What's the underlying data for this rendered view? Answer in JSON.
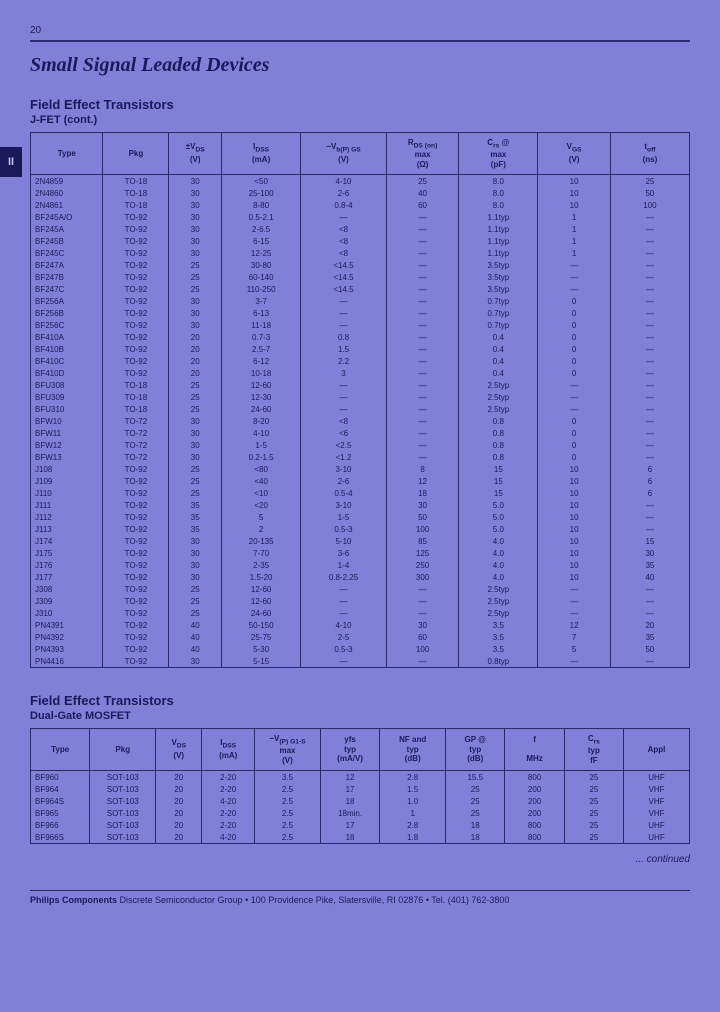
{
  "page_number": "20",
  "main_title": "Small Signal Leaded Devices",
  "side_tab": "II",
  "continued_text": "... continued",
  "footer": {
    "bold": "Philips Components",
    "rest": " Discrete Semiconductor Group • 100 Providence Pike, Slatersville, RI 02876 • Tel. (401) 762-3800"
  },
  "table1": {
    "title": "Field Effect Transistors",
    "subtitle": "J-FET (cont.)",
    "headers": [
      "Type",
      "Pkg",
      "±V<sub>DS</sub><br>(V)",
      "I<sub>DSS</sub><br>(mA)",
      "−V<sub>b(P) GS</sub><br>(V)",
      "R<sub>DS (on)</sub><br>max<br>(Ω)",
      "C<sub>rs</sub> @<br>max<br>(pF)",
      "V<sub>GS</sub><br>(V)",
      "t<sub>off</sub><br>(ns)"
    ],
    "widths": [
      "11%",
      "10%",
      "8%",
      "12%",
      "13%",
      "11%",
      "12%",
      "11%",
      "12%"
    ],
    "rows": [
      [
        "2N4859",
        "TO-18",
        "30",
        "<50",
        "4-10",
        "25",
        "8.0",
        "10",
        "25"
      ],
      [
        "2N4860",
        "TO-18",
        "30",
        "25-100",
        "2-6",
        "40",
        "8.0",
        "10",
        "50"
      ],
      [
        "2N4861",
        "TO-18",
        "30",
        "8-80",
        "0.8-4",
        "60",
        "8.0",
        "10",
        "100"
      ],
      [
        "BF245A/O",
        "TO-92",
        "30",
        "0.5-2.1",
        "—",
        "—",
        "1.1typ",
        "1",
        "—"
      ],
      [
        "BF245A",
        "TO-92",
        "30",
        "2-6.5",
        "<8",
        "—",
        "1.1typ",
        "1",
        "—"
      ],
      [
        "BF245B",
        "TO-92",
        "30",
        "6-15",
        "<8",
        "—",
        "1.1typ",
        "1",
        "—"
      ],
      [
        "BF245C",
        "TO-92",
        "30",
        "12-25",
        "<8",
        "—",
        "1.1typ",
        "1",
        "—"
      ],
      [
        "BF247A",
        "TO-92",
        "25",
        "30-80",
        "<14.5",
        "—",
        "3.5typ",
        "—",
        "—"
      ],
      [
        "BF247B",
        "TO-92",
        "25",
        "60-140",
        "<14.5",
        "—",
        "3.5typ",
        "—",
        "—"
      ],
      [
        "BF247C",
        "TO-92",
        "25",
        "110-250",
        "<14.5",
        "—",
        "3.5typ",
        "—",
        "—"
      ],
      [
        "BF256A",
        "TO-92",
        "30",
        "3-7",
        "—",
        "—",
        "0.7typ",
        "0",
        "—"
      ],
      [
        "BF256B",
        "TO-92",
        "30",
        "6-13",
        "—",
        "—",
        "0.7typ",
        "0",
        "—"
      ],
      [
        "BF256C",
        "TO-92",
        "30",
        "11-18",
        "—",
        "—",
        "0.7typ",
        "0",
        "—"
      ],
      [
        "BF410A",
        "TO-92",
        "20",
        "0.7-3",
        "0.8",
        "—",
        "0.4",
        "0",
        "—"
      ],
      [
        "BF410B",
        "TO-92",
        "20",
        "2.5-7",
        "1.5",
        "—",
        "0.4",
        "0",
        "—"
      ],
      [
        "BF410C",
        "TO-92",
        "20",
        "6-12",
        "2.2",
        "—",
        "0.4",
        "0",
        "—"
      ],
      [
        "BF410D",
        "TO-92",
        "20",
        "10-18",
        "3",
        "—",
        "0.4",
        "0",
        "—"
      ],
      [
        "BFU308",
        "TO-18",
        "25",
        "12-60",
        "—",
        "—",
        "2.5typ",
        "—",
        "—"
      ],
      [
        "BFU309",
        "TO-18",
        "25",
        "12-30",
        "—",
        "—",
        "2.5typ",
        "—",
        "—"
      ],
      [
        "BFU310",
        "TO-18",
        "25",
        "24-60",
        "—",
        "—",
        "2.5typ",
        "—",
        "—"
      ],
      [
        "BFW10",
        "TO-72",
        "30",
        "8-20",
        "<8",
        "—",
        "0.8",
        "0",
        "—"
      ],
      [
        "BFW11",
        "TO-72",
        "30",
        "4-10",
        "<6",
        "—",
        "0.8",
        "0",
        "—"
      ],
      [
        "BFW12",
        "TO-72",
        "30",
        "1-5",
        "<2.5",
        "—",
        "0.8",
        "0",
        "—"
      ],
      [
        "BFW13",
        "TO-72",
        "30",
        "0.2-1.5",
        "<1.2",
        "—",
        "0.8",
        "0",
        "—"
      ],
      [
        "J108",
        "TO-92",
        "25",
        "<80",
        "3-10",
        "8",
        "15",
        "10",
        "6"
      ],
      [
        "J109",
        "TO-92",
        "25",
        "<40",
        "2-6",
        "12",
        "15",
        "10",
        "6"
      ],
      [
        "J110",
        "TO-92",
        "25",
        "<10",
        "0.5-4",
        "18",
        "15",
        "10",
        "6"
      ],
      [
        "J111",
        "TO-92",
        "35",
        "<20",
        "3-10",
        "30",
        "5.0",
        "10",
        "—"
      ],
      [
        "J112",
        "TO-92",
        "35",
        "5",
        "1-5",
        "50",
        "5.0",
        "10",
        "—"
      ],
      [
        "J113",
        "TO-92",
        "35",
        "2",
        "0.5-3",
        "100",
        "5.0",
        "10",
        "—"
      ],
      [
        "J174",
        "TO-92",
        "30",
        "20-135",
        "5-10",
        "85",
        "4.0",
        "10",
        "15"
      ],
      [
        "J175",
        "TO-92",
        "30",
        "7-70",
        "3-6",
        "125",
        "4.0",
        "10",
        "30"
      ],
      [
        "J176",
        "TO-92",
        "30",
        "2-35",
        "1-4",
        "250",
        "4.0",
        "10",
        "35"
      ],
      [
        "J177",
        "TO-92",
        "30",
        "1.5-20",
        "0.8-2.25",
        "300",
        "4.0",
        "10",
        "40"
      ],
      [
        "J308",
        "TO-92",
        "25",
        "12-60",
        "—",
        "—",
        "2.5typ",
        "—",
        "—"
      ],
      [
        "J309",
        "TO-92",
        "25",
        "12-60",
        "—",
        "—",
        "2.5typ",
        "—",
        "—"
      ],
      [
        "J310",
        "TO-92",
        "25",
        "24-60",
        "—",
        "—",
        "2.5typ",
        "—",
        "—"
      ],
      [
        "PN4391",
        "TO-92",
        "40",
        "50-150",
        "4-10",
        "30",
        "3.5",
        "12",
        "20"
      ],
      [
        "PN4392",
        "TO-92",
        "40",
        "25-75",
        "2-5",
        "60",
        "3.5",
        "7",
        "35"
      ],
      [
        "PN4393",
        "TO-92",
        "40",
        "5-30",
        "0.5-3",
        "100",
        "3.5",
        "5",
        "50"
      ],
      [
        "PN4416",
        "TO-92",
        "30",
        "5-15",
        "—",
        "—",
        "0.8typ",
        "—",
        "—"
      ]
    ]
  },
  "table2": {
    "title": "Field Effect Transistors",
    "subtitle": "Dual-Gate MOSFET",
    "headers": [
      "Type",
      "Pkg",
      "V<sub>DS</sub><br>(V)",
      "I<sub>DSS</sub><br>(mA)",
      "−V<sub>(P) G1-S</sub><br>max<br>(V)",
      "yfs<br>typ<br>(mA/V)",
      "NF and<br>typ<br>(dB)",
      "GP @<br>typ<br>(dB)",
      "f<br><br>MHz",
      "C<sub>rs</sub><br>typ<br>fF",
      "Appl"
    ],
    "widths": [
      "9%",
      "10%",
      "7%",
      "8%",
      "10%",
      "9%",
      "10%",
      "9%",
      "9%",
      "9%",
      "10%"
    ],
    "rows": [
      [
        "BF960",
        "SOT-103",
        "20",
        "2-20",
        "3.5",
        "12",
        "2.8",
        "15.5",
        "800",
        "25",
        "UHF"
      ],
      [
        "BF964",
        "SOT-103",
        "20",
        "2-20",
        "2.5",
        "17",
        "1.5",
        "25",
        "200",
        "25",
        "VHF"
      ],
      [
        "BF964S",
        "SOT-103",
        "20",
        "4-20",
        "2.5",
        "18",
        "1.0",
        "25",
        "200",
        "25",
        "VHF"
      ],
      [
        "BF965",
        "SOT-103",
        "20",
        "2-20",
        "2.5",
        "18min.",
        "1",
        "25",
        "200",
        "25",
        "VHF"
      ],
      [
        "BF966",
        "SOT-103",
        "20",
        "2-20",
        "2.5",
        "17",
        "2.8",
        "18",
        "800",
        "25",
        "UHF"
      ],
      [
        "BF966S",
        "SOT-103",
        "20",
        "4-20",
        "2.5",
        "18",
        "1.8",
        "18",
        "800",
        "25",
        "UHF"
      ]
    ]
  }
}
